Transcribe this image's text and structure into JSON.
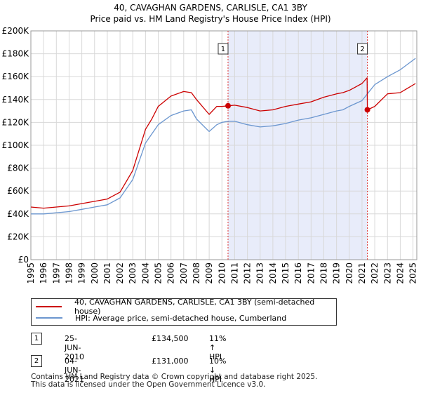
{
  "chart_data": {
    "type": "line",
    "title": "40, CAVAGHAN GARDENS, CARLISLE, CA1 3BY",
    "subtitle": "Price paid vs. HM Land Registry's House Price Index (HPI)",
    "ylim": [
      0,
      200000
    ],
    "xlim": [
      1995,
      2025.3
    ],
    "y_ticks": [
      {
        "value": 0,
        "label": "£0"
      },
      {
        "value": 20000,
        "label": "£20K"
      },
      {
        "value": 40000,
        "label": "£40K"
      },
      {
        "value": 60000,
        "label": "£60K"
      },
      {
        "value": 80000,
        "label": "£80K"
      },
      {
        "value": 100000,
        "label": "£100K"
      },
      {
        "value": 120000,
        "label": "£120K"
      },
      {
        "value": 140000,
        "label": "£140K"
      },
      {
        "value": 160000,
        "label": "£160K"
      },
      {
        "value": 180000,
        "label": "£180K"
      },
      {
        "value": 200000,
        "label": "£200K"
      }
    ],
    "x_ticks": [
      "1995",
      "1996",
      "1997",
      "1998",
      "1999",
      "2000",
      "2001",
      "2002",
      "2003",
      "2004",
      "2005",
      "2006",
      "2007",
      "2008",
      "2009",
      "2010",
      "2011",
      "2012",
      "2013",
      "2014",
      "2015",
      "2016",
      "2017",
      "2018",
      "2019",
      "2020",
      "2021",
      "2022",
      "2023",
      "2024",
      "2025"
    ],
    "grid": true,
    "shaded_region": [
      2010.48,
      2021.42
    ],
    "series": [
      {
        "name": "40, CAVAGHAN GARDENS, CARLISLE, CA1 3BY (semi-detached house)",
        "color": "#cc0000",
        "x": [
          1995,
          1996,
          1997,
          1998,
          1999,
          2000,
          2001,
          2002,
          2003,
          2004,
          2004.5,
          2005,
          2006,
          2007,
          2007.6,
          2008,
          2009,
          2009.6,
          2010,
          2010.48,
          2011,
          2012,
          2013,
          2014,
          2015,
          2016,
          2017,
          2018,
          2019,
          2019.5,
          2020,
          2021,
          2021.4,
          2021.42,
          2022,
          2023,
          2024,
          2025.2
        ],
        "values": [
          46000,
          45000,
          46000,
          47000,
          49000,
          51000,
          53000,
          59000,
          78000,
          114000,
          123000,
          134000,
          143000,
          147000,
          146000,
          140000,
          127000,
          134000,
          134000,
          134500,
          135000,
          133000,
          130000,
          131000,
          134000,
          136000,
          138000,
          142000,
          145000,
          146000,
          148000,
          154000,
          159000,
          131000,
          134000,
          145000,
          146000,
          154000
        ]
      },
      {
        "name": "HPI: Average price, semi-detached house, Cumberland",
        "color": "#6b96cf",
        "x": [
          1995,
          1996,
          1997,
          1998,
          1999,
          2000,
          2001,
          2002,
          2003,
          2004,
          2004.5,
          2005,
          2006,
          2007,
          2007.6,
          2008,
          2009,
          2009.6,
          2010,
          2010.48,
          2011,
          2012,
          2013,
          2014,
          2015,
          2016,
          2017,
          2018,
          2019,
          2019.5,
          2020,
          2021,
          2021.42,
          2022,
          2023,
          2024,
          2025.2
        ],
        "values": [
          40000,
          40000,
          41000,
          42000,
          44000,
          46000,
          48000,
          54000,
          70000,
          102000,
          110000,
          118000,
          126000,
          130000,
          131000,
          123000,
          112000,
          118000,
          120000,
          121000,
          121000,
          118000,
          116000,
          117000,
          119000,
          122000,
          124000,
          127000,
          130000,
          131000,
          134000,
          139000,
          145000,
          153000,
          160000,
          166000,
          176000
        ]
      }
    ],
    "markers": [
      {
        "label": "1",
        "x": 2010.48,
        "y": 134500
      },
      {
        "label": "2",
        "x": 2021.42,
        "y": 131000
      }
    ]
  },
  "legend": {
    "items": [
      {
        "label": "40, CAVAGHAN GARDENS, CARLISLE, CA1 3BY (semi-detached house)",
        "color": "#cc0000"
      },
      {
        "label": "HPI: Average price, semi-detached house, Cumberland",
        "color": "#6b96cf"
      }
    ]
  },
  "sales": [
    {
      "num": "1",
      "date": "25-JUN-2010",
      "price": "£134,500",
      "hpi": "11% ↑ HPI"
    },
    {
      "num": "2",
      "date": "04-JUN-2021",
      "price": "£131,000",
      "hpi": "10% ↓ HPI"
    }
  ],
  "footer": {
    "line1": "Contains HM Land Registry data © Crown copyright and database right 2025.",
    "line2": "This data is licensed under the Open Government Licence v3.0."
  }
}
